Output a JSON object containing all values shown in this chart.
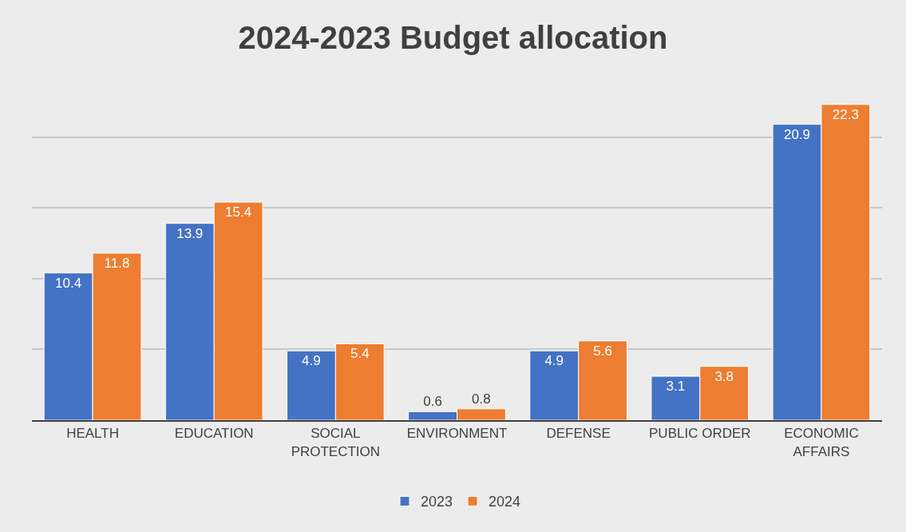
{
  "chart_data": {
    "type": "bar",
    "title": "2024-2023 Budget allocation",
    "categories": [
      "HEALTH",
      "EDUCATION",
      "SOCIAL PROTECTION",
      "ENVIRONMENT",
      "DEFENSE",
      "PUBLIC ORDER",
      "ECONOMIC AFFAIRS"
    ],
    "series": [
      {
        "name": "2023",
        "color": "#4472c4",
        "values": [
          10.4,
          13.9,
          4.9,
          0.6,
          4.9,
          3.1,
          20.9
        ]
      },
      {
        "name": "2024",
        "color": "#ed7d31",
        "values": [
          11.8,
          15.4,
          5.4,
          0.8,
          5.6,
          3.8,
          22.3
        ]
      }
    ],
    "tick_labels": "x",
    "grid": "y",
    "legend": "bottom",
    "data_labels": true
  }
}
